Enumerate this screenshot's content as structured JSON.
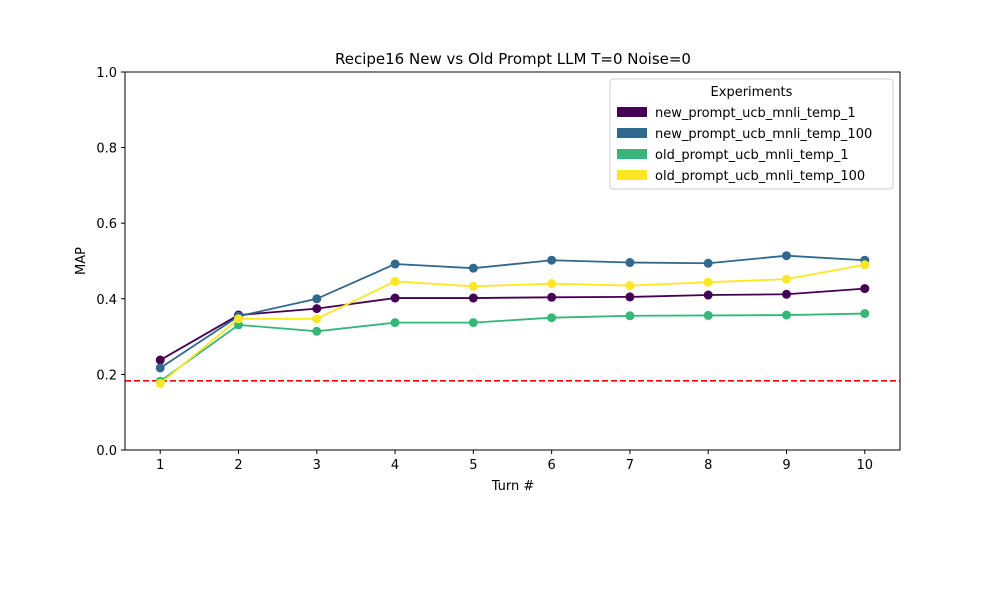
{
  "chart_data": {
    "type": "line",
    "title": "Recipe16 New vs Old Prompt LLM T=0 Noise=0",
    "xlabel": "Turn #",
    "ylabel": "MAP",
    "x": [
      1,
      2,
      3,
      4,
      5,
      6,
      7,
      8,
      9,
      10
    ],
    "xticks": [
      "1",
      "2",
      "3",
      "4",
      "5",
      "6",
      "7",
      "8",
      "9",
      "10"
    ],
    "ylim": [
      0.0,
      1.0
    ],
    "yticks": [
      "0.0",
      "0.2",
      "0.4",
      "0.6",
      "0.8",
      "1.0"
    ],
    "grid": false,
    "legend": {
      "title": "Experiments",
      "placement": "top-right"
    },
    "baseline": {
      "value": 0.183,
      "color": "#ff0000",
      "style": "dashed"
    },
    "series": [
      {
        "name": "new_prompt_ucb_mnli_temp_1",
        "color": "#440154",
        "values": [
          0.238,
          0.357,
          0.374,
          0.402,
          0.402,
          0.404,
          0.405,
          0.41,
          0.412,
          0.427
        ]
      },
      {
        "name": "new_prompt_ucb_mnli_temp_100",
        "color": "#31688e",
        "values": [
          0.217,
          0.354,
          0.4,
          0.492,
          0.481,
          0.502,
          0.496,
          0.494,
          0.514,
          0.502
        ]
      },
      {
        "name": "old_prompt_ucb_mnli_temp_1",
        "color": "#35b779",
        "values": [
          0.182,
          0.331,
          0.314,
          0.337,
          0.337,
          0.35,
          0.355,
          0.356,
          0.357,
          0.361
        ]
      },
      {
        "name": "old_prompt_ucb_mnli_temp_100",
        "color": "#fde725",
        "values": [
          0.176,
          0.347,
          0.347,
          0.446,
          0.433,
          0.44,
          0.435,
          0.444,
          0.452,
          0.49
        ]
      }
    ]
  }
}
